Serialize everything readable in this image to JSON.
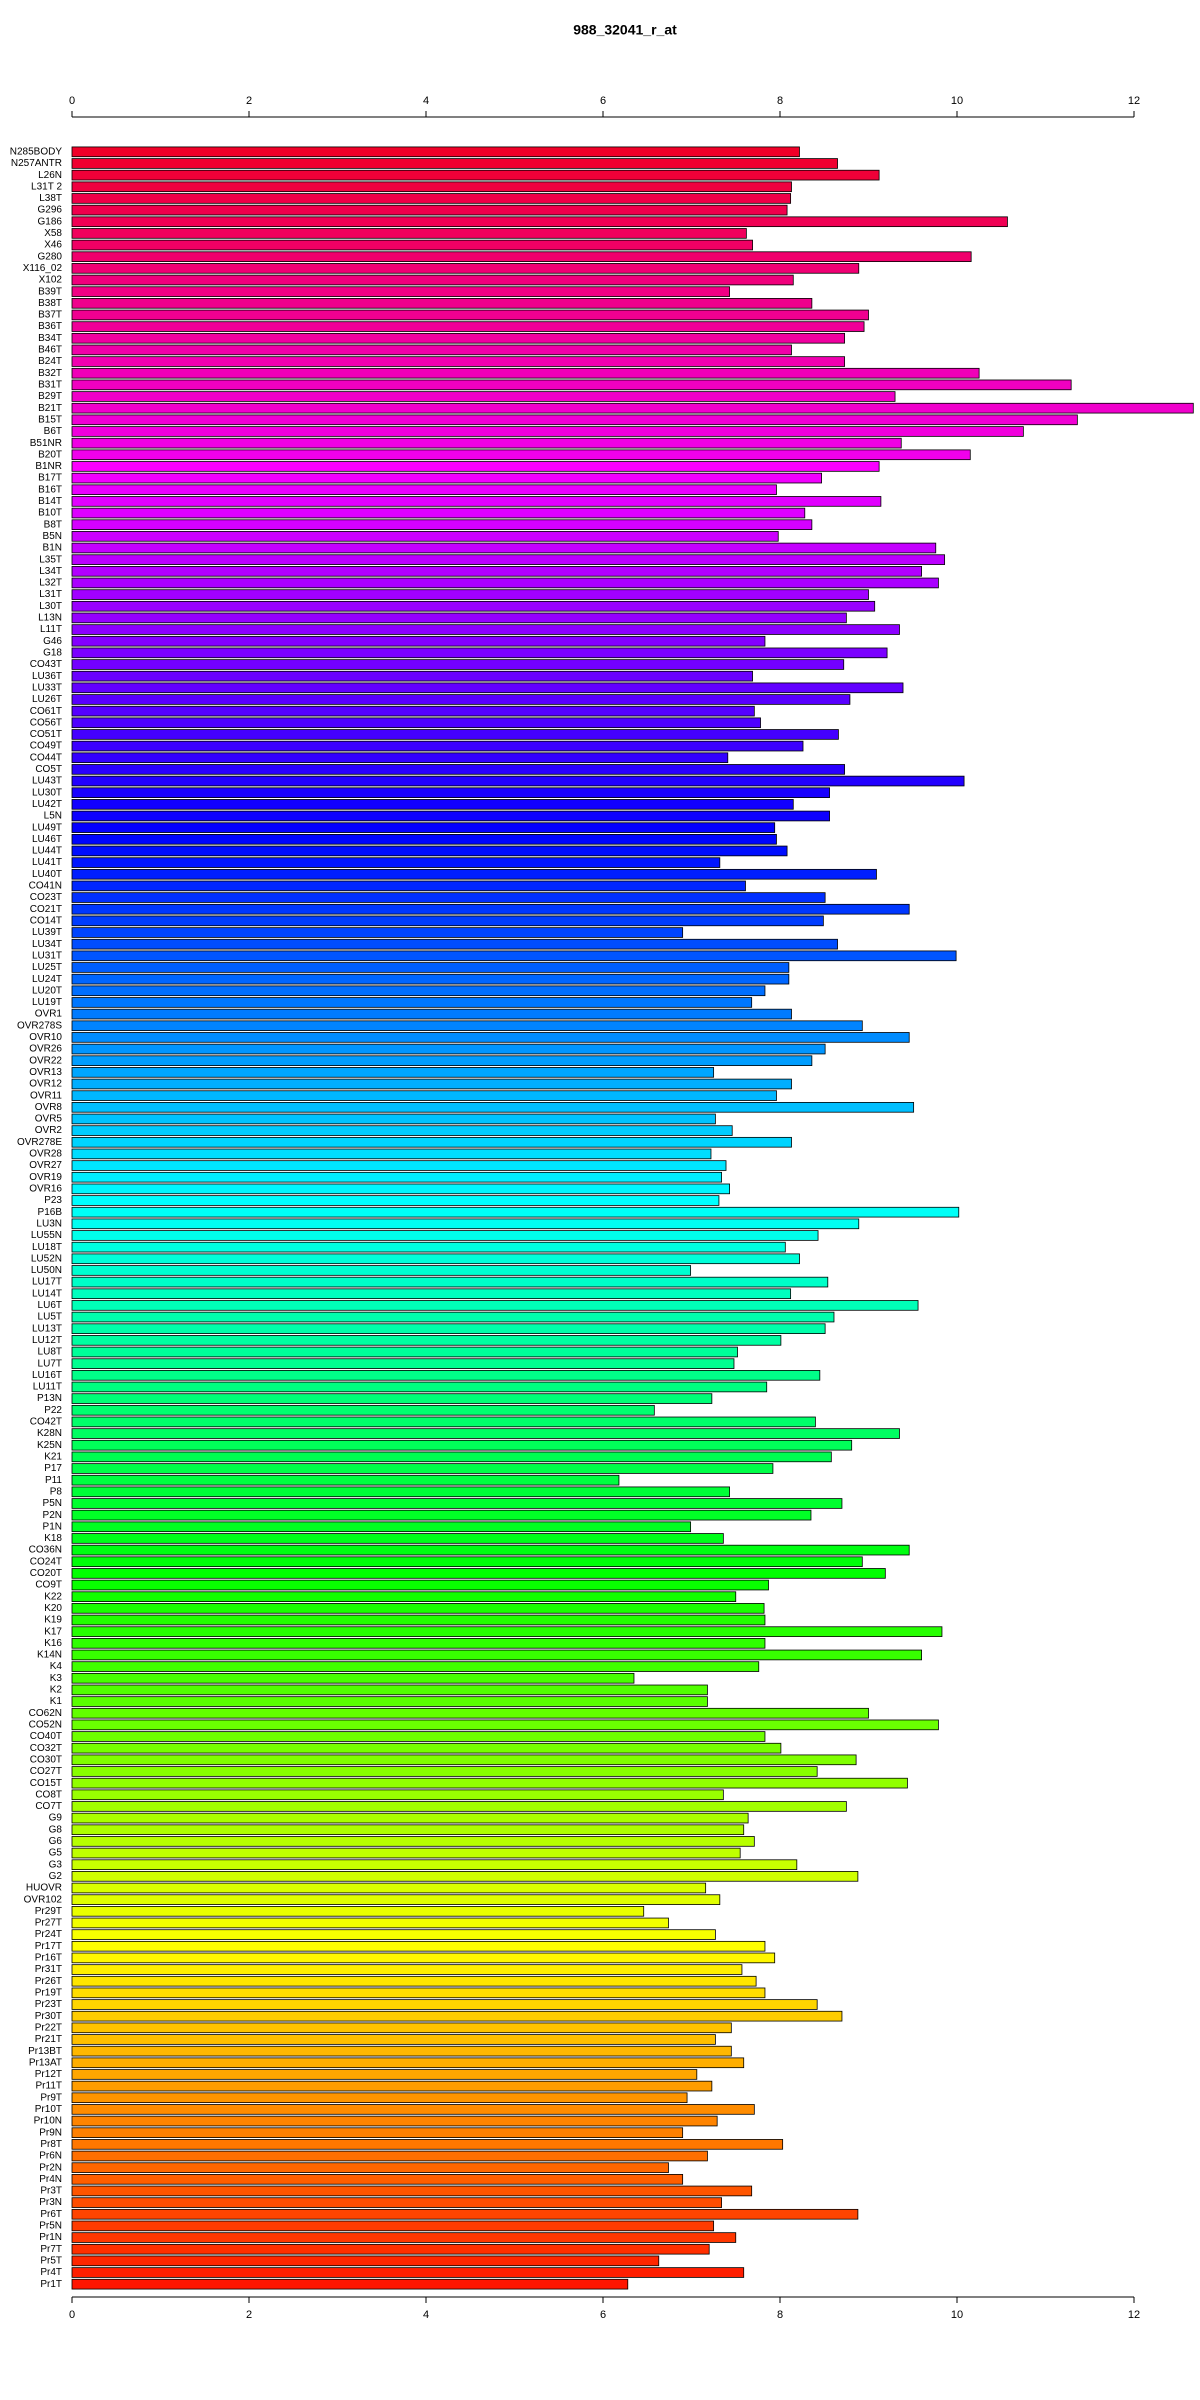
{
  "chart_data": {
    "type": "barh",
    "title": "988_32041_r_at",
    "categories": [
      "N285BODY",
      "N257ANTR",
      "L26N",
      "L31T 2",
      "L38T",
      "G296",
      "G186",
      "X58",
      "X46",
      "G280",
      "X116_02",
      "X102",
      "B39T",
      "B38T",
      "B37T",
      "B36T",
      "B34T",
      "B46T",
      "B24T",
      "B32T",
      "B31T",
      "B29T",
      "B21T",
      "B15T",
      "B6T",
      "B51NR",
      "B20T",
      "B1NR",
      "B17T",
      "B16T",
      "B14T",
      "B10T",
      "B8T",
      "B5N",
      "B1N",
      "L35T",
      "L34T",
      "L32T",
      "L31T",
      "L30T",
      "L13N",
      "L11T",
      "G46",
      "G18",
      "CO43T",
      "LU36T",
      "LU33T",
      "LU26T",
      "CO61T",
      "CO56T",
      "CO51T",
      "CO49T",
      "CO44T",
      "CO5T",
      "LU43T",
      "LU30T",
      "LU42T",
      "L5N",
      "LU49T",
      "LU46T",
      "LU44T",
      "LU41T",
      "LU40T",
      "CO41N",
      "CO23T",
      "CO21T",
      "CO14T",
      "LU39T",
      "LU34T",
      "LU31T",
      "LU25T",
      "LU24T",
      "LU20T",
      "LU19T",
      "OVR1",
      "OVR278S",
      "OVR10",
      "OVR26",
      "OVR22",
      "OVR13",
      "OVR12",
      "OVR11",
      "OVR8",
      "OVR5",
      "OVR2",
      "OVR278E",
      "OVR28",
      "OVR27",
      "OVR19",
      "OVR16",
      "P23",
      "P16B",
      "LU3N",
      "LU55N",
      "LU18T",
      "LU52N",
      "LU50N",
      "LU17T",
      "LU14T",
      "LU6T",
      "LU5T",
      "LU13T",
      "LU12T",
      "LU8T",
      "LU7T",
      "LU16T",
      "LU11T",
      "P13N",
      "P22",
      "CO42T",
      "K28N",
      "K25N",
      "K21",
      "P17",
      "P11",
      "P8",
      "P5N",
      "P2N",
      "P1N",
      "K18",
      "CO36N",
      "CO24T",
      "CO20T",
      "CO9T",
      "K22",
      "K20",
      "K19",
      "K17",
      "K16",
      "K14N",
      "K4",
      "K3",
      "K2",
      "K1",
      "CO62N",
      "CO52N",
      "CO40T",
      "CO32T",
      "CO30T",
      "CO27T",
      "CO15T",
      "CO8T",
      "CO7T",
      "G9",
      "G8",
      "G6",
      "G5",
      "G3",
      "G2",
      "HUOVR",
      "OVR102",
      "Pr29T",
      "Pr27T",
      "Pr24T",
      "Pr17T",
      "Pr16T",
      "Pr31T",
      "Pr26T",
      "Pr19T",
      "Pr23T",
      "Pr30T",
      "Pr22T",
      "Pr21T",
      "Pr13BT",
      "Pr13AT",
      "Pr12T",
      "Pr11T",
      "Pr9T",
      "Pr10T",
      "Pr10N",
      "Pr9N",
      "Pr8T",
      "Pr6N",
      "Pr2N",
      "Pr4N",
      "Pr3T",
      "Pr3N",
      "Pr6T",
      "Pr5N",
      "Pr1N",
      "Pr7T",
      "Pr5T",
      "Pr4T",
      "Pr1T"
    ],
    "values": [
      8.22,
      8.65,
      9.12,
      8.13,
      8.12,
      8.08,
      10.57,
      7.62,
      7.69,
      10.16,
      8.89,
      8.15,
      7.43,
      8.36,
      9.0,
      8.95,
      8.73,
      8.13,
      8.73,
      10.25,
      11.29,
      9.3,
      12.67,
      11.36,
      10.75,
      9.37,
      10.15,
      9.12,
      8.47,
      7.96,
      9.14,
      8.28,
      8.36,
      7.98,
      9.76,
      9.86,
      9.6,
      9.79,
      9.0,
      9.07,
      8.75,
      9.35,
      7.83,
      9.21,
      8.72,
      7.69,
      9.39,
      8.79,
      7.71,
      7.78,
      8.66,
      8.26,
      7.41,
      8.73,
      10.08,
      8.56,
      8.15,
      8.56,
      7.94,
      7.96,
      8.08,
      7.32,
      9.09,
      7.61,
      8.51,
      9.46,
      8.49,
      6.9,
      8.65,
      9.99,
      8.1,
      8.1,
      7.83,
      7.68,
      8.13,
      8.93,
      9.46,
      8.51,
      8.36,
      7.25,
      8.13,
      7.96,
      9.51,
      7.27,
      7.46,
      8.13,
      7.22,
      7.39,
      7.34,
      7.43,
      7.31,
      10.02,
      8.89,
      8.43,
      8.06,
      8.22,
      6.99,
      8.54,
      8.12,
      9.56,
      8.61,
      8.51,
      8.01,
      7.52,
      7.48,
      8.45,
      7.85,
      7.23,
      6.58,
      8.4,
      9.35,
      8.81,
      8.58,
      7.92,
      6.18,
      7.43,
      8.7,
      8.35,
      6.99,
      7.36,
      9.46,
      8.93,
      9.19,
      7.87,
      7.5,
      7.82,
      7.83,
      9.83,
      7.83,
      9.6,
      7.76,
      6.35,
      7.18,
      7.18,
      9.0,
      9.79,
      7.83,
      8.01,
      8.86,
      8.42,
      9.44,
      7.36,
      8.75,
      7.64,
      7.59,
      7.71,
      7.55,
      8.19,
      8.88,
      7.16,
      7.32,
      6.46,
      6.74,
      7.27,
      7.83,
      7.94,
      7.57,
      7.73,
      7.83,
      8.42,
      8.7,
      7.45,
      7.27,
      7.45,
      7.59,
      7.06,
      7.23,
      6.95,
      7.71,
      7.29,
      6.9,
      8.03,
      7.18,
      6.74,
      6.9,
      7.68,
      7.34,
      8.88,
      7.25,
      7.5,
      7.2,
      6.63,
      7.59,
      6.28
    ],
    "colors": [
      "hsl(350,100%,47%)",
      "hsl(348,100%,47%)",
      "hsl(346,100%,47%)",
      "hsl(344,100%,47%)",
      "hsl(342,100%,47%)",
      "hsl(341,100%,47%)",
      "hsl(339,100%,47%)",
      "hsl(337,100%,47%)",
      "hsl(335,100%,47%)",
      "hsl(333,100%,47%)",
      "hsl(331,100%,47%)",
      "hsl(329,100%,47%)",
      "hsl(327,100%,47%)",
      "hsl(325,100%,47%)",
      "hsl(324,100%,47%)",
      "hsl(322,100%,47%)",
      "hsl(320,100%,47%)",
      "hsl(318,100%,47%)",
      "hsl(316,100%,47%)",
      "hsl(314,100%,47%)",
      "hsl(312,100%,47%)",
      "hsl(310,100%,47%)",
      "hsl(309,100%,47%)",
      "hsl(307,100%,47%)",
      "hsl(305,100%,47%)",
      "hsl(303,100%,47%)",
      "hsl(301,100%,47%)",
      "hsl(299,100%,50%)",
      "hsl(297,100%,50%)",
      "hsl(295,100%,50%)",
      "hsl(293,100%,50%)",
      "hsl(292,100%,50%)",
      "hsl(290,100%,50%)",
      "hsl(288,100%,50%)",
      "hsl(286,100%,50%)",
      "hsl(284,100%,50%)",
      "hsl(282,100%,50%)",
      "hsl(280,100%,50%)",
      "hsl(278,100%,50%)",
      "hsl(276,100%,50%)",
      "hsl(275,100%,50%)",
      "hsl(273,100%,50%)",
      "hsl(271,100%,50%)",
      "hsl(269,100%,50%)",
      "hsl(267,100%,50%)",
      "hsl(265,100%,50%)",
      "hsl(263,100%,50%)",
      "hsl(261,100%,50%)",
      "hsl(260,100%,50%)",
      "hsl(258,100%,50%)",
      "hsl(256,100%,50%)",
      "hsl(254,100%,50%)",
      "hsl(252,100%,50%)",
      "hsl(250,100%,50%)",
      "hsl(248,100%,50%)",
      "hsl(246,100%,50%)",
      "hsl(244,100%,50%)",
      "hsl(243,100%,50%)",
      "hsl(241,100%,50%)",
      "hsl(239,100%,50%)",
      "hsl(237,100%,50%)",
      "hsl(235,100%,50%)",
      "hsl(233,100%,50%)",
      "hsl(231,100%,50%)",
      "hsl(229,100%,50%)",
      "hsl(227,100%,50%)",
      "hsl(226,100%,50%)",
      "hsl(224,100%,50%)",
      "hsl(222,100%,50%)",
      "hsl(220,100%,50%)",
      "hsl(218,100%,50%)",
      "hsl(216,100%,50%)",
      "hsl(214,100%,50%)",
      "hsl(212,100%,50%)",
      "hsl(211,100%,50%)",
      "hsl(209,100%,50%)",
      "hsl(207,100%,50%)",
      "hsl(205,100%,50%)",
      "hsl(203,100%,50%)",
      "hsl(201,100%,50%)",
      "hsl(199,100%,50%)",
      "hsl(197,100%,50%)",
      "hsl(195,100%,50%)",
      "hsl(194,100%,50%)",
      "hsl(192,100%,50%)",
      "hsl(190,100%,50%)",
      "hsl(188,100%,50%)",
      "hsl(186,100%,50%)",
      "hsl(184,100%,50%)",
      "hsl(182,100%,50%)",
      "hsl(180,100%,50%)",
      "hsl(178,100%,50%)",
      "hsl(177,100%,50%)",
      "hsl(175,100%,50%)",
      "hsl(173,100%,50%)",
      "hsl(171,100%,50%)",
      "hsl(169,100%,50%)",
      "hsl(167,100%,50%)",
      "hsl(165,100%,50%)",
      "hsl(163,100%,50%)",
      "hsl(161,100%,50%)",
      "hsl(160,100%,50%)",
      "hsl(158,100%,50%)",
      "hsl(156,100%,50%)",
      "hsl(154,100%,50%)",
      "hsl(152,100%,50%)",
      "hsl(150,100%,50%)",
      "hsl(148,100%,50%)",
      "hsl(146,100%,50%)",
      "hsl(145,100%,50%)",
      "hsl(143,100%,50%)",
      "hsl(141,100%,50%)",
      "hsl(139,100%,50%)",
      "hsl(137,100%,50%)",
      "hsl(135,100%,50%)",
      "hsl(133,100%,50%)",
      "hsl(131,100%,50%)",
      "hsl(129,100%,50%)",
      "hsl(128,100%,50%)",
      "hsl(126,100%,50%)",
      "hsl(124,100%,50%)",
      "hsl(122,100%,50%)",
      "hsl(120,100%,50%)",
      "hsl(118,100%,50%)",
      "hsl(116,100%,50%)",
      "hsl(114,100%,50%)",
      "hsl(112,100%,50%)",
      "hsl(111,100%,50%)",
      "hsl(109,100%,50%)",
      "hsl(107,100%,50%)",
      "hsl(105,100%,50%)",
      "hsl(103,100%,50%)",
      "hsl(101,100%,50%)",
      "hsl(99,100%,50%)",
      "hsl(97,100%,50%)",
      "hsl(95,100%,50%)",
      "hsl(94,100%,50%)",
      "hsl(92,100%,50%)",
      "hsl(90,100%,50%)",
      "hsl(88,100%,50%)",
      "hsl(86,100%,50%)",
      "hsl(84,100%,50%)",
      "hsl(82,100%,50%)",
      "hsl(80,100%,50%)",
      "hsl(79,100%,50%)",
      "hsl(77,100%,50%)",
      "hsl(75,100%,50%)",
      "hsl(73,100%,50%)",
      "hsl(71,100%,50%)",
      "hsl(69,100%,50%)",
      "hsl(67,100%,50%)",
      "hsl(65,100%,50%)",
      "hsl(63,100%,50%)",
      "hsl(62,100%,50%)",
      "hsl(60,100%,50%)",
      "hsl(58,100%,50%)",
      "hsl(56,100%,50%)",
      "hsl(54,100%,50%)",
      "hsl(52,100%,50%)",
      "hsl(50,100%,50%)",
      "hsl(48,100%,50%)",
      "hsl(46,100%,50%)",
      "hsl(45,100%,50%)",
      "hsl(43,100%,50%)",
      "hsl(41,100%,50%)",
      "hsl(39,100%,50%)",
      "hsl(37,100%,50%)",
      "hsl(35,100%,50%)",
      "hsl(33,100%,50%)",
      "hsl(31,100%,50%)",
      "hsl(30,100%,50%)",
      "hsl(28,100%,50%)",
      "hsl(26,100%,50%)",
      "hsl(24,100%,50%)",
      "hsl(22,100%,50%)",
      "hsl(20,100%,50%)",
      "hsl(18,100%,50%)",
      "hsl(16,100%,50%)",
      "hsl(14,100%,50%)",
      "hsl(13,100%,50%)",
      "hsl(11,100%,50%)",
      "hsl(9,100%,50%)",
      "hsl(7,100%,50%)",
      "hsl(5,100%,50%)"
    ],
    "xlim": [
      0,
      12
    ],
    "xticks": [
      0,
      2,
      4,
      6,
      8,
      10,
      12
    ]
  }
}
